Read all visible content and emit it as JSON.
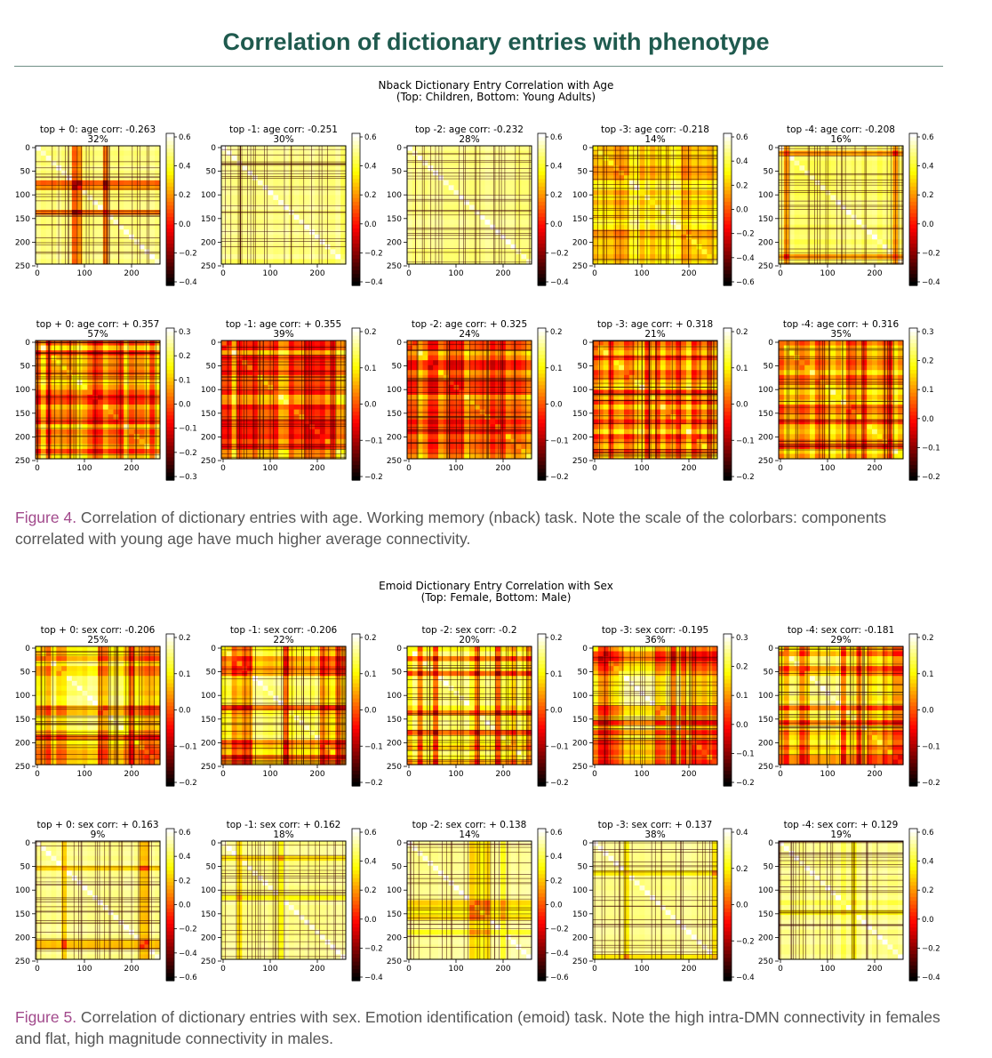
{
  "header": {
    "title": "Correlation of dictionary entries with phenotype"
  },
  "figures": [
    {
      "title_line1": "Nback Dictionary Entry Correlation with Age",
      "title_line2": "(Top: Children, Bottom: Young Adults)",
      "caption_label": "Figure 4.",
      "caption_text": " Correlation of dictionary entries with age. Working memory (nback) task. Note the scale of the colorbars: components correlated with young age have much higher average connectivity.",
      "rows": [
        {
          "panels": [
            {
              "title": "top + 0: age corr: -0.263",
              "pct": "32%",
              "cbar_ticks": [
                "0.6",
                "0.4",
                "0.2",
                "0.0",
                "−0.2",
                "−0.4"
              ],
              "pattern": "cross"
            },
            {
              "title": "top -1: age corr: -0.251",
              "pct": "30%",
              "cbar_ticks": [
                "0.6",
                "0.4",
                "0.2",
                "0.0",
                "−0.2",
                "−0.4"
              ],
              "pattern": "bright"
            },
            {
              "title": "top -2: age corr: -0.232",
              "pct": "28%",
              "cbar_ticks": [
                "0.6",
                "0.4",
                "0.2",
                "0.0",
                "−0.2",
                "−0.4"
              ],
              "pattern": "bright"
            },
            {
              "title": "top -3: age corr: -0.218",
              "pct": "14%",
              "cbar_ticks": [
                "0.6",
                "0.4",
                "0.2",
                "0.0",
                "−0.2",
                "−0.4",
                "−0.6"
              ],
              "pattern": "mixed"
            },
            {
              "title": "top -4: age corr: -0.208",
              "pct": "16%",
              "cbar_ticks": [
                "0.6",
                "0.4",
                "0.2",
                "0.0",
                "−0.2",
                "−0.4"
              ],
              "pattern": "frame"
            }
          ]
        },
        {
          "panels": [
            {
              "title": "top + 0: age corr: + 0.357",
              "pct": "57%",
              "cbar_ticks": [
                "0.3",
                "0.2",
                "0.1",
                "0.0",
                "−0.1",
                "−0.2",
                "−0.3"
              ],
              "pattern": "dark"
            },
            {
              "title": "top -1: age corr: + 0.355",
              "pct": "39%",
              "cbar_ticks": [
                "0.2",
                "0.1",
                "0.0",
                "−0.1",
                "−0.2"
              ],
              "pattern": "dark"
            },
            {
              "title": "top -2: age corr: + 0.325",
              "pct": "24%",
              "cbar_ticks": [
                "0.2",
                "0.1",
                "0.0",
                "−0.1",
                "−0.2"
              ],
              "pattern": "dark"
            },
            {
              "title": "top -3: age corr: + 0.318",
              "pct": "21%",
              "cbar_ticks": [
                "0.2",
                "0.1",
                "0.0",
                "−0.1",
                "−0.2"
              ],
              "pattern": "dark"
            },
            {
              "title": "top -4: age corr: + 0.316",
              "pct": "35%",
              "cbar_ticks": [
                "0.3",
                "0.2",
                "0.1",
                "0.0",
                "−0.1",
                "−0.2"
              ],
              "pattern": "dark"
            }
          ]
        }
      ]
    },
    {
      "title_line1": "Emoid Dictionary Entry Correlation with Sex",
      "title_line2": "(Top: Female, Bottom: Male)",
      "caption_label": "Figure 5.",
      "caption_text": " Correlation of dictionary entries with sex. Emotion identification (emoid) task. Note the high intra-DMN connectivity in females and flat, high magnitude connectivity in males.",
      "rows": [
        {
          "panels": [
            {
              "title": "top + 0: sex corr: -0.206",
              "pct": "25%",
              "cbar_ticks": [
                "0.2",
                "0.1",
                "0.0",
                "−0.1",
                "−0.2"
              ],
              "pattern": "dmn"
            },
            {
              "title": "top -1: sex corr: -0.206",
              "pct": "22%",
              "cbar_ticks": [
                "0.2",
                "0.1",
                "0.0",
                "−0.1",
                "−0.2"
              ],
              "pattern": "dmn"
            },
            {
              "title": "top -2: sex corr: -0.2",
              "pct": "20%",
              "cbar_ticks": [
                "0.2",
                "0.1",
                "0.0",
                "−0.1",
                "−0.2"
              ],
              "pattern": "dmn"
            },
            {
              "title": "top -3: sex corr: -0.195",
              "pct": "36%",
              "cbar_ticks": [
                "0.3",
                "0.2",
                "0.1",
                "0.0",
                "−0.1",
                "−0.2"
              ],
              "pattern": "dmn"
            },
            {
              "title": "top -4: sex corr: -0.181",
              "pct": "29%",
              "cbar_ticks": [
                "0.2",
                "0.1",
                "0.0",
                "−0.1",
                "−0.2"
              ],
              "pattern": "dmn"
            }
          ]
        },
        {
          "panels": [
            {
              "title": "top + 0: sex corr: + 0.163",
              "pct": "9%",
              "cbar_ticks": [
                "0.6",
                "0.4",
                "0.2",
                "0.0",
                "−0.2",
                "−0.4",
                "−0.6"
              ],
              "pattern": "bright"
            },
            {
              "title": "top -1: sex corr: + 0.162",
              "pct": "18%",
              "cbar_ticks": [
                "0.6",
                "0.4",
                "0.2",
                "0.0",
                "−0.2",
                "−0.4"
              ],
              "pattern": "bright"
            },
            {
              "title": "top -2: sex corr: + 0.138",
              "pct": "14%",
              "cbar_ticks": [
                "0.6",
                "0.4",
                "0.2",
                "0.0",
                "−0.2",
                "−0.4",
                "−0.6"
              ],
              "pattern": "bright"
            },
            {
              "title": "top -3: sex corr: + 0.137",
              "pct": "38%",
              "cbar_ticks": [
                "0.4",
                "0.2",
                "0.0",
                "−0.2",
                "−0.4"
              ],
              "pattern": "bright"
            },
            {
              "title": "top -4: sex corr: + 0.129",
              "pct": "19%",
              "cbar_ticks": [
                "0.6",
                "0.4",
                "0.2",
                "0.0",
                "−0.2",
                "−0.4"
              ],
              "pattern": "bright"
            }
          ]
        }
      ]
    }
  ],
  "axis": {
    "y_ticks": [
      "0",
      "50",
      "100",
      "150",
      "200",
      "250"
    ],
    "x_ticks": [
      "0",
      "100",
      "200"
    ]
  },
  "colors": {
    "title": "#1f5a4e",
    "caption_label": "#a24a8c",
    "caption_text": "#555555"
  }
}
